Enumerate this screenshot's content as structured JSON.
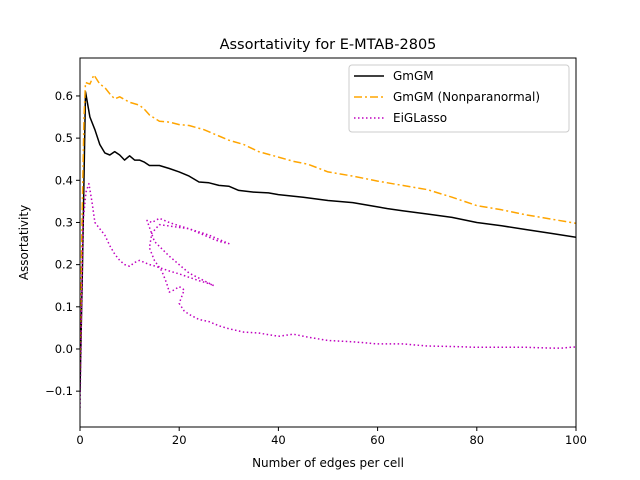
{
  "chart_data": {
    "type": "line",
    "title": "Assortativity for E-MTAB-2805",
    "xlabel": "Number of edges per cell",
    "ylabel": "Assortativity",
    "xlim": [
      0,
      100
    ],
    "ylim": [
      -0.185,
      0.69
    ],
    "xticks": [
      0,
      20,
      40,
      60,
      80,
      100
    ],
    "yticks": [
      -0.1,
      0.0,
      0.1,
      0.2,
      0.3,
      0.4,
      0.5,
      0.6
    ],
    "xtick_labels": [
      "0",
      "20",
      "40",
      "60",
      "80",
      "100"
    ],
    "ytick_labels": [
      "−0.1",
      "0.0",
      "0.1",
      "0.2",
      "0.3",
      "0.4",
      "0.5",
      "0.6"
    ],
    "grid": false,
    "legend_position": "top-right",
    "series": [
      {
        "name": "GmGM",
        "color": "#000000",
        "style": "solid",
        "points": [
          [
            0,
            -0.1
          ],
          [
            0.5,
            0.2
          ],
          [
            1.1,
            0.61
          ],
          [
            2,
            0.55
          ],
          [
            3,
            0.52
          ],
          [
            4,
            0.485
          ],
          [
            5,
            0.465
          ],
          [
            6,
            0.46
          ],
          [
            7,
            0.468
          ],
          [
            8,
            0.46
          ],
          [
            9,
            0.448
          ],
          [
            10,
            0.458
          ],
          [
            11,
            0.448
          ],
          [
            12,
            0.448
          ],
          [
            13,
            0.443
          ],
          [
            14,
            0.435
          ],
          [
            16,
            0.435
          ],
          [
            18,
            0.428
          ],
          [
            20,
            0.42
          ],
          [
            22,
            0.41
          ],
          [
            24,
            0.396
          ],
          [
            26,
            0.394
          ],
          [
            28,
            0.388
          ],
          [
            30,
            0.386
          ],
          [
            32,
            0.376
          ],
          [
            35,
            0.372
          ],
          [
            38,
            0.37
          ],
          [
            40,
            0.366
          ],
          [
            45,
            0.36
          ],
          [
            50,
            0.352
          ],
          [
            55,
            0.347
          ],
          [
            60,
            0.337
          ],
          [
            62,
            0.333
          ],
          [
            65,
            0.328
          ],
          [
            70,
            0.32
          ],
          [
            75,
            0.312
          ],
          [
            80,
            0.3
          ],
          [
            85,
            0.292
          ],
          [
            90,
            0.283
          ],
          [
            95,
            0.274
          ],
          [
            100,
            0.265
          ]
        ]
      },
      {
        "name": "GmGM (Nonparanormal)",
        "color": "#ffa500",
        "style": "dashdot",
        "points": [
          [
            0,
            -0.05
          ],
          [
            0.4,
            0.3
          ],
          [
            0.8,
            0.55
          ],
          [
            1.1,
            0.632
          ],
          [
            2,
            0.628
          ],
          [
            2.8,
            0.65
          ],
          [
            4,
            0.628
          ],
          [
            5,
            0.62
          ],
          [
            6,
            0.605
          ],
          [
            7,
            0.593
          ],
          [
            8,
            0.598
          ],
          [
            10,
            0.585
          ],
          [
            12,
            0.578
          ],
          [
            13,
            0.568
          ],
          [
            14,
            0.555
          ],
          [
            16,
            0.54
          ],
          [
            18,
            0.538
          ],
          [
            20,
            0.532
          ],
          [
            22,
            0.53
          ],
          [
            25,
            0.52
          ],
          [
            28,
            0.505
          ],
          [
            30,
            0.495
          ],
          [
            33,
            0.485
          ],
          [
            36,
            0.468
          ],
          [
            40,
            0.455
          ],
          [
            43,
            0.445
          ],
          [
            46,
            0.438
          ],
          [
            50,
            0.42
          ],
          [
            55,
            0.41
          ],
          [
            60,
            0.398
          ],
          [
            65,
            0.388
          ],
          [
            70,
            0.378
          ],
          [
            75,
            0.36
          ],
          [
            80,
            0.34
          ],
          [
            85,
            0.33
          ],
          [
            90,
            0.318
          ],
          [
            95,
            0.308
          ],
          [
            100,
            0.298
          ]
        ]
      },
      {
        "name": "EiGLasso",
        "color": "#bf00bf",
        "style": "dotted",
        "points": [
          [
            0,
            -0.14
          ],
          [
            0.3,
            0.1
          ],
          [
            0.6,
            0.3
          ],
          [
            1.2,
            0.372
          ],
          [
            1.8,
            0.392
          ],
          [
            2.4,
            0.35
          ],
          [
            3,
            0.3
          ],
          [
            4,
            0.285
          ],
          [
            5,
            0.27
          ],
          [
            6,
            0.245
          ],
          [
            7,
            0.225
          ],
          [
            8,
            0.21
          ],
          [
            9,
            0.2
          ],
          [
            10,
            0.196
          ],
          [
            11,
            0.205
          ],
          [
            12,
            0.21
          ],
          [
            13,
            0.205
          ],
          [
            14,
            0.2
          ],
          [
            15,
            0.197
          ],
          [
            16,
            0.193
          ],
          [
            18,
            0.185
          ],
          [
            20,
            0.178
          ],
          [
            22,
            0.17
          ],
          [
            24,
            0.162
          ],
          [
            26,
            0.155
          ],
          [
            27,
            0.15
          ],
          [
            22,
            0.18
          ],
          [
            18,
            0.22
          ],
          [
            15,
            0.255
          ],
          [
            13.5,
            0.305
          ],
          [
            14.5,
            0.3
          ],
          [
            16,
            0.31
          ],
          [
            18,
            0.3
          ],
          [
            20,
            0.292
          ],
          [
            22,
            0.285
          ],
          [
            25,
            0.27
          ],
          [
            28,
            0.255
          ],
          [
            30,
            0.25
          ],
          [
            26,
            0.27
          ],
          [
            22,
            0.285
          ],
          [
            19,
            0.29
          ],
          [
            16,
            0.295
          ],
          [
            14.5,
            0.275
          ],
          [
            14,
            0.24
          ],
          [
            15,
            0.21
          ],
          [
            16.5,
            0.185
          ],
          [
            17.5,
            0.155
          ],
          [
            18,
            0.135
          ],
          [
            19,
            0.14
          ],
          [
            20,
            0.148
          ],
          [
            21,
            0.14
          ],
          [
            20,
            0.108
          ],
          [
            21,
            0.09
          ],
          [
            22,
            0.082
          ],
          [
            24,
            0.07
          ],
          [
            26,
            0.065
          ],
          [
            28,
            0.055
          ],
          [
            30,
            0.048
          ],
          [
            33,
            0.04
          ],
          [
            36,
            0.038
          ],
          [
            40,
            0.03
          ],
          [
            43,
            0.035
          ],
          [
            46,
            0.028
          ],
          [
            50,
            0.02
          ],
          [
            55,
            0.017
          ],
          [
            60,
            0.012
          ],
          [
            65,
            0.012
          ],
          [
            70,
            0.007
          ],
          [
            75,
            0.006
          ],
          [
            80,
            0.004
          ],
          [
            85,
            0.004
          ],
          [
            90,
            0.004
          ],
          [
            95,
            0.002
          ],
          [
            97,
            0.002
          ],
          [
            100,
            0.005
          ]
        ]
      }
    ]
  }
}
